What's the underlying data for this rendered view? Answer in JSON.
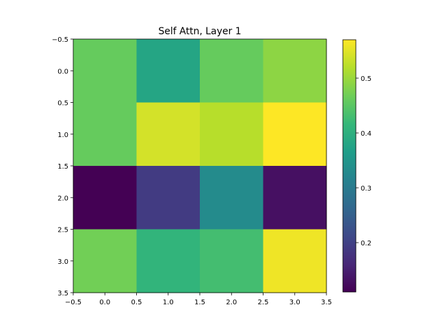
{
  "chart_data": {
    "type": "heatmap",
    "title": "Self Attn, Layer 1",
    "xlabel": "",
    "ylabel": "",
    "xlim": [
      -0.5,
      3.5
    ],
    "ylim": [
      3.5,
      -0.5
    ],
    "x_ticks": [
      -0.5,
      0.0,
      0.5,
      1.0,
      1.5,
      2.0,
      2.5,
      3.0,
      3.5
    ],
    "x_tick_labels": [
      "−0.5",
      "0.0",
      "0.5",
      "1.0",
      "1.5",
      "2.0",
      "2.5",
      "3.0",
      "3.5"
    ],
    "y_ticks": [
      -0.5,
      0.0,
      0.5,
      1.0,
      1.5,
      2.0,
      2.5,
      3.0,
      3.5
    ],
    "y_tick_labels": [
      "−0.5",
      "0.0",
      "0.5",
      "1.0",
      "1.5",
      "2.0",
      "2.5",
      "3.0",
      "3.5"
    ],
    "values": [
      [
        0.46,
        0.38,
        0.46,
        0.49
      ],
      [
        0.46,
        0.54,
        0.52,
        0.57
      ],
      [
        0.11,
        0.19,
        0.33,
        0.13
      ],
      [
        0.47,
        0.41,
        0.43,
        0.56
      ]
    ],
    "colorbar": {
      "colormap": "viridis",
      "vmin": 0.11,
      "vmax": 0.57,
      "ticks": [
        0.2,
        0.3,
        0.4,
        0.5
      ],
      "tick_labels": [
        "0.2",
        "0.3",
        "0.4",
        "0.5"
      ]
    },
    "grid": false
  }
}
